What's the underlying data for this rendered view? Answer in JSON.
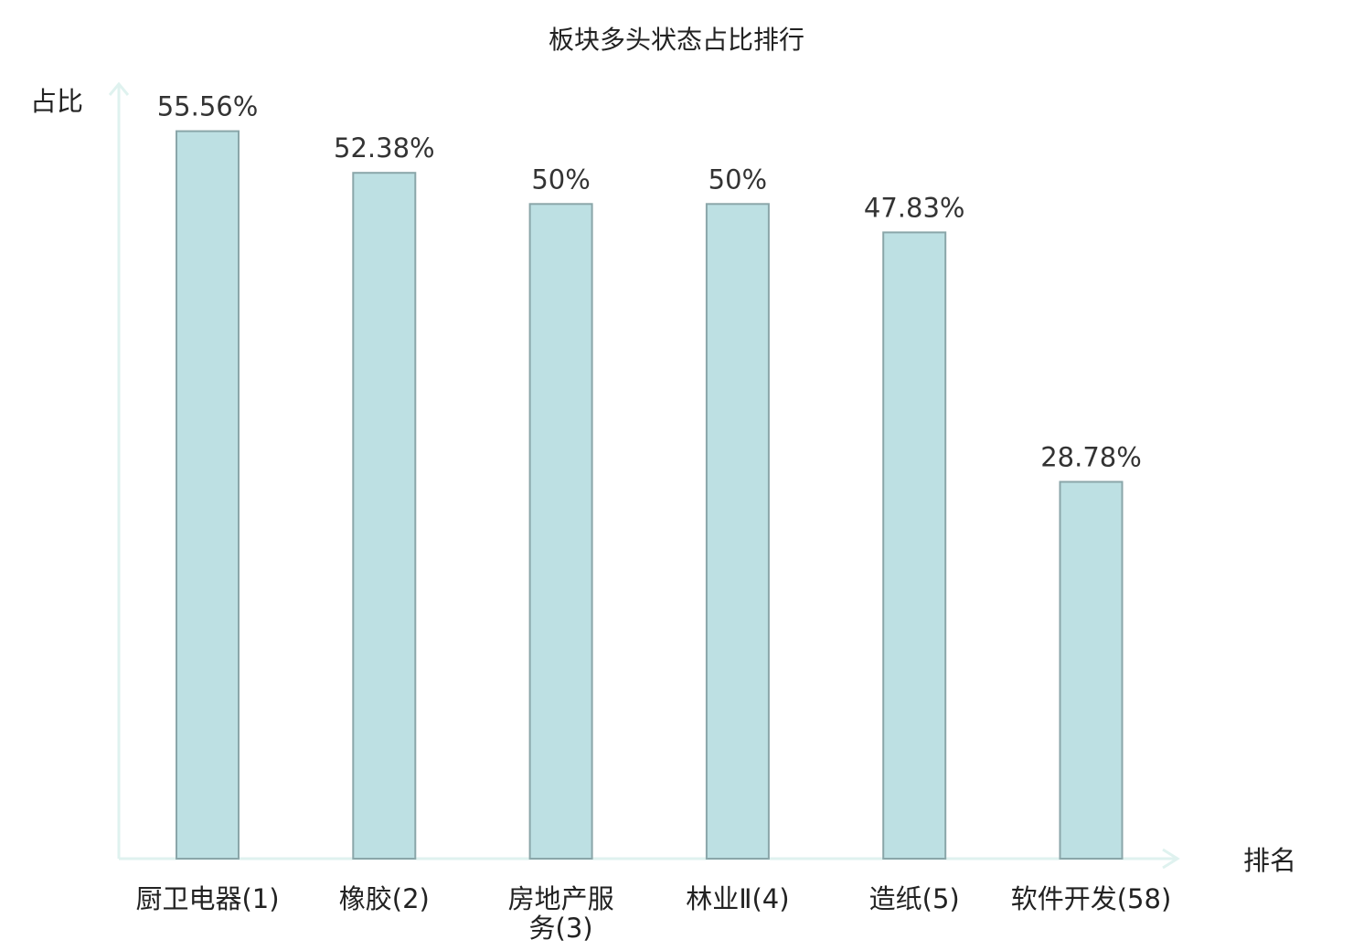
{
  "chart_data": {
    "type": "bar",
    "title": "板块多头状态占比排行",
    "xlabel": "排名",
    "ylabel": "占比",
    "categories": [
      "厨卫电器(1)",
      "橡胶(2)",
      "房地产服务(3)",
      "林业Ⅱ(4)",
      "造纸(5)",
      "软件开发(58)"
    ],
    "category_lines": [
      [
        "厨卫电器(1)"
      ],
      [
        "橡胶(2)"
      ],
      [
        "房地产服",
        "务(3)"
      ],
      [
        "林业Ⅱ(4)"
      ],
      [
        "造纸(5)"
      ],
      [
        "软件开发(58)"
      ]
    ],
    "values": [
      55.56,
      52.38,
      50,
      50,
      47.83,
      28.78
    ],
    "value_labels": [
      "55.56%",
      "52.38%",
      "50%",
      "50%",
      "47.83%",
      "28.78%"
    ],
    "highlight_index": 5,
    "ylim": [
      0,
      60
    ],
    "grid": false,
    "colors": {
      "bar_fill": "#bde0e3",
      "bar_stroke": "#8aa6a9",
      "axis": "#dff2ef",
      "highlight_text": "#e8100f",
      "text": "#222222",
      "value_text": "#333333"
    }
  }
}
